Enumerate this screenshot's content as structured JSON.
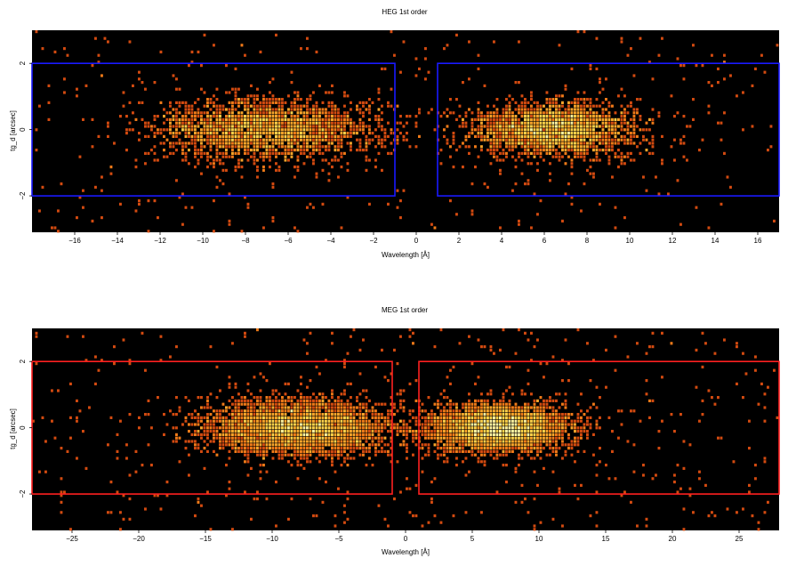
{
  "chart_data": [
    {
      "type": "heatmap",
      "title": "HEG 1st order",
      "xlabel": "Wavelength [Å]",
      "ylabel": "tg_d [arcsec]",
      "xlim": [
        -18,
        17
      ],
      "ylim": [
        -3.1,
        3
      ],
      "xticks": [
        -16,
        -14,
        -12,
        -10,
        -8,
        -6,
        -4,
        -2,
        0,
        2,
        4,
        6,
        8,
        10,
        12,
        14,
        16
      ],
      "yticks": [
        -2,
        0,
        2
      ],
      "region_color": "#1a1aff",
      "regions": [
        {
          "x": [
            -18,
            -1
          ],
          "y": [
            -2,
            2
          ]
        },
        {
          "x": [
            1,
            17
          ],
          "y": [
            -2,
            2
          ]
        }
      ],
      "clusters": [
        {
          "center": -7,
          "spread_x": 2.6,
          "spread_y": 0.45
        },
        {
          "center": 6.5,
          "spread_x": 1.9,
          "spread_y": 0.4
        }
      ]
    },
    {
      "type": "heatmap",
      "title": "MEG 1st order",
      "xlabel": "Wavelength [Å]",
      "ylabel": "tg_d [arcsec]",
      "xlim": [
        -28,
        28
      ],
      "ylim": [
        -3.1,
        3
      ],
      "xticks": [
        -25,
        -20,
        -15,
        -10,
        -5,
        0,
        5,
        10,
        15,
        20,
        25
      ],
      "yticks": [
        -2,
        0,
        2
      ],
      "region_color": "#ff2020",
      "regions": [
        {
          "x": [
            -28,
            -1
          ],
          "y": [
            -2,
            2
          ]
        },
        {
          "x": [
            1,
            28
          ],
          "y": [
            -2,
            2
          ]
        }
      ],
      "clusters": [
        {
          "center": -8,
          "spread_x": 3.5,
          "spread_y": 0.4
        },
        {
          "center": 7,
          "spread_x": 2.6,
          "spread_y": 0.35
        }
      ]
    }
  ]
}
